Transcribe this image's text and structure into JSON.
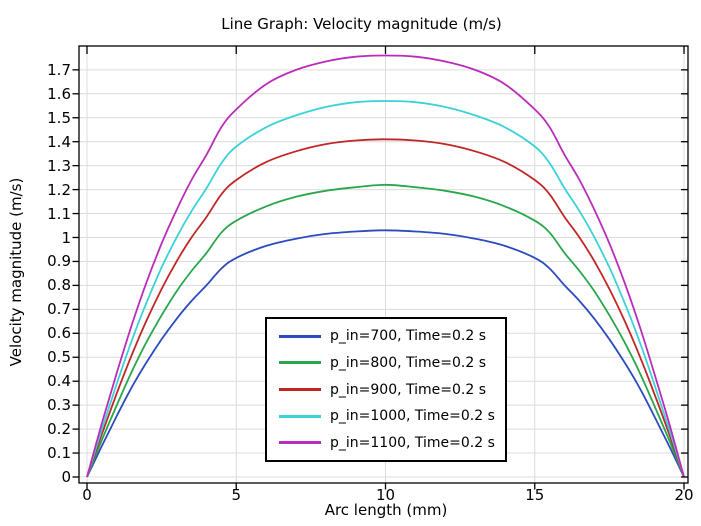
{
  "window": {
    "background": "#ffffff"
  },
  "chart_data": {
    "type": "line",
    "title": "Line Graph: Velocity magnitude (m/s)",
    "xlabel": "Arc length (mm)",
    "ylabel": "Velocity magnitude (m/s)",
    "xlim": [
      -0.27,
      20.14
    ],
    "ylim": [
      -0.026,
      1.8
    ],
    "grid": true,
    "grid_color": "#dcdcdc",
    "axis_color": "#000000",
    "xticks": [
      0,
      5,
      10,
      15,
      20
    ],
    "xtick_labels": [
      "0",
      "5",
      "10",
      "15",
      "20"
    ],
    "yticks": [
      0,
      0.1,
      0.2,
      0.3,
      0.4,
      0.5,
      0.6,
      0.7,
      0.8,
      0.9,
      1,
      1.1,
      1.2,
      1.3,
      1.4,
      1.5,
      1.6,
      1.7
    ],
    "ytick_labels": [
      "0",
      "0.1",
      "0.2",
      "0.3",
      "0.4",
      "0.5",
      "0.6",
      "0.7",
      "0.8",
      "0.9",
      "1",
      "1.1",
      "1.2",
      "1.3",
      "1.4",
      "1.5",
      "1.6",
      "1.7"
    ],
    "legend_position": "bottom-center-inside",
    "legend_border_color": "#000000",
    "legend_background": "#ffffff",
    "x": [
      0,
      0.5,
      1,
      1.5,
      2,
      2.5,
      3,
      3.5,
      4,
      4.5,
      5,
      6,
      7,
      8,
      9,
      10,
      11,
      12,
      13,
      14,
      15,
      15.5,
      16,
      16.5,
      17,
      17.5,
      18,
      18.5,
      19,
      19.5,
      20
    ],
    "series": [
      {
        "name": "p_in=700, Time=0.2 s",
        "color": "#2B4BC0",
        "peak": 1.03,
        "values": [
          0,
          0.13,
          0.255,
          0.375,
          0.48,
          0.575,
          0.66,
          0.735,
          0.8,
          0.87,
          0.915,
          0.965,
          0.995,
          1.015,
          1.025,
          1.03,
          1.025,
          1.015,
          0.995,
          0.965,
          0.915,
          0.87,
          0.8,
          0.735,
          0.66,
          0.575,
          0.48,
          0.375,
          0.255,
          0.13,
          0
        ]
      },
      {
        "name": "p_in=800, Time=0.2 s",
        "color": "#28A74A",
        "peak": 1.22,
        "values": [
          0,
          0.155,
          0.3,
          0.44,
          0.565,
          0.675,
          0.775,
          0.86,
          0.935,
          1.02,
          1.07,
          1.13,
          1.17,
          1.195,
          1.21,
          1.22,
          1.21,
          1.195,
          1.17,
          1.13,
          1.07,
          1.02,
          0.935,
          0.86,
          0.775,
          0.675,
          0.565,
          0.44,
          0.3,
          0.155,
          0
        ]
      },
      {
        "name": "p_in=900, Time=0.2 s",
        "color": "#C02626",
        "peak": 1.41,
        "values": [
          0,
          0.18,
          0.35,
          0.51,
          0.655,
          0.785,
          0.9,
          1,
          1.085,
          1.18,
          1.24,
          1.315,
          1.36,
          1.39,
          1.405,
          1.41,
          1.405,
          1.39,
          1.36,
          1.315,
          1.24,
          1.18,
          1.085,
          1,
          0.9,
          0.785,
          0.655,
          0.51,
          0.35,
          0.18,
          0
        ]
      },
      {
        "name": "p_in=1000, Time=0.2 s",
        "color": "#3AD2D9",
        "peak": 1.57,
        "values": [
          0,
          0.2,
          0.39,
          0.57,
          0.73,
          0.875,
          1,
          1.11,
          1.205,
          1.31,
          1.38,
          1.46,
          1.51,
          1.545,
          1.565,
          1.57,
          1.565,
          1.545,
          1.51,
          1.46,
          1.38,
          1.31,
          1.205,
          1.11,
          1,
          0.875,
          0.73,
          0.57,
          0.39,
          0.2,
          0
        ]
      },
      {
        "name": "p_in=1100, Time=0.2 s",
        "color": "#BA2CBA",
        "peak": 1.76,
        "values": [
          0,
          0.225,
          0.435,
          0.635,
          0.815,
          0.975,
          1.115,
          1.24,
          1.345,
          1.46,
          1.535,
          1.64,
          1.7,
          1.735,
          1.755,
          1.76,
          1.755,
          1.735,
          1.7,
          1.64,
          1.535,
          1.46,
          1.345,
          1.24,
          1.115,
          0.975,
          0.815,
          0.635,
          0.435,
          0.225,
          0
        ]
      }
    ]
  }
}
